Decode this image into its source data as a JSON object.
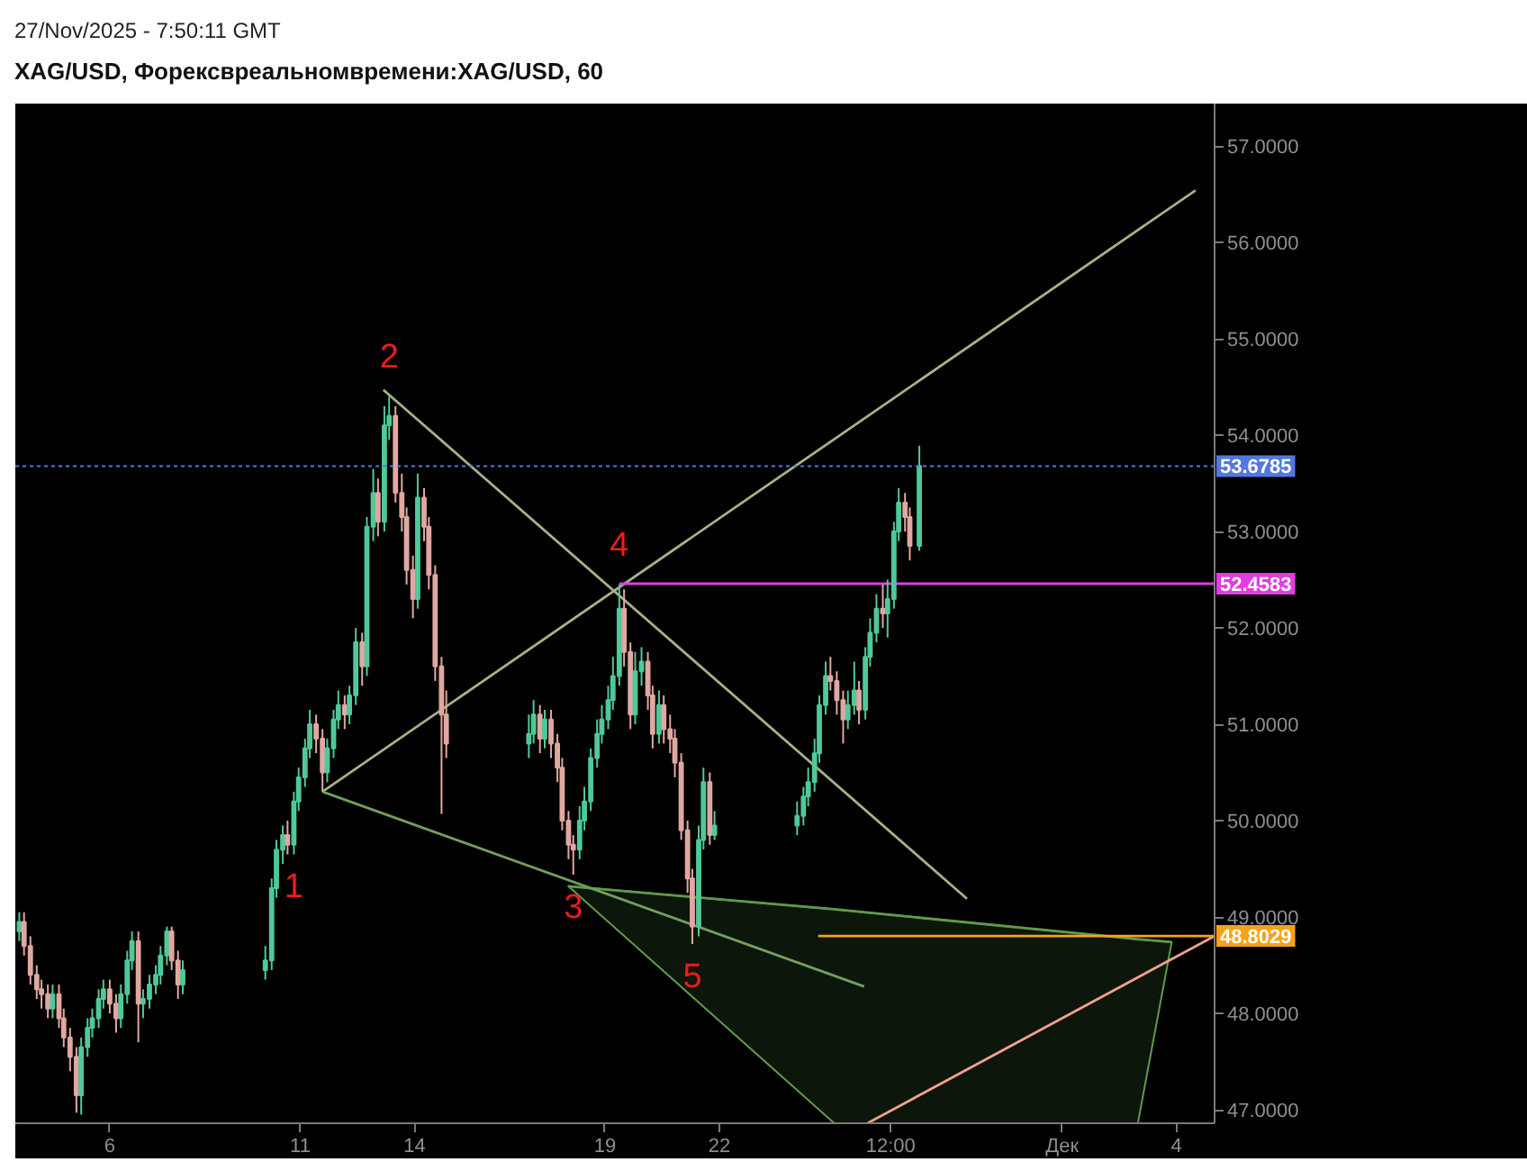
{
  "chart_data": {
    "type": "candlestick",
    "title": "XAG/USD, Форексвреальномвремени:XAG/USD, 60",
    "annotations": [
      "27/Nov/2025 - 7:50:11 GMT",
      {
        "text": "1",
        "x": "2025-11-10T20:00",
        "y": 49.65
      },
      {
        "text": "2",
        "x": "2025-11-13T08:00",
        "y": 54.4
      },
      {
        "text": "3",
        "x": "2025-11-18T04:00",
        "y": 49.44
      },
      {
        "text": "4",
        "x": "2025-11-19T09:00",
        "y": 52.45
      },
      {
        "text": "5",
        "x": "2025-11-21T07:00",
        "y": 48.72
      }
    ],
    "x": [
      "2025-11-03T15:00",
      "2025-11-03T18:00",
      "2025-11-03T22:00",
      "2025-11-04T02:00",
      "2025-11-04T05:00",
      "2025-11-04T09:00",
      "2025-11-04T12:00",
      "2025-11-04T16:00",
      "2025-11-04T19:00",
      "2025-11-04T23:00",
      "2025-11-05T03:00",
      "2025-11-05T06:00",
      "2025-11-05T10:00",
      "2025-11-05T13:00",
      "2025-11-05T17:00",
      "2025-11-05T20:00",
      "2025-11-06T00:00",
      "2025-11-06T04:00",
      "2025-11-06T07:00",
      "2025-11-06T11:00",
      "2025-11-06T14:00",
      "2025-11-06T18:00",
      "2025-11-06T21:00",
      "2025-11-07T01:00",
      "2025-11-07T05:00",
      "2025-11-07T08:00",
      "2025-11-07T12:00",
      "2025-11-07T15:00",
      "2025-11-07T19:00",
      "2025-11-07T22:00",
      "2025-11-10T02:00",
      "2025-11-10T06:00",
      "2025-11-10T09:00",
      "2025-11-10T13:00",
      "2025-11-10T16:00",
      "2025-11-10T20:00",
      "2025-11-10T23:00",
      "2025-11-11T03:00",
      "2025-11-11T06:00",
      "2025-11-11T10:00",
      "2025-11-11T14:00",
      "2025-11-11T17:00",
      "2025-11-11T21:00",
      "2025-11-12T00:00",
      "2025-11-12T04:00",
      "2025-11-12T07:00",
      "2025-11-12T11:00",
      "2025-11-12T15:00",
      "2025-11-12T18:00",
      "2025-11-12T22:00",
      "2025-11-13T01:00",
      "2025-11-13T05:00",
      "2025-11-13T08:00",
      "2025-11-13T12:00",
      "2025-11-13T16:00",
      "2025-11-13T19:00",
      "2025-11-13T23:00",
      "2025-11-14T02:00",
      "2025-11-14T06:00",
      "2025-11-14T09:00",
      "2025-11-14T13:00",
      "2025-11-14T17:00",
      "2025-11-14T20:00",
      "2025-11-17T00:00",
      "2025-11-17T03:00",
      "2025-11-17T07:00",
      "2025-11-17T10:00",
      "2025-11-17T14:00",
      "2025-11-17T18:00",
      "2025-11-17T21:00",
      "2025-11-18T01:00",
      "2025-11-18T04:00",
      "2025-11-18T08:00",
      "2025-11-18T11:00",
      "2025-11-18T15:00",
      "2025-11-18T19:00",
      "2025-11-18T22:00",
      "2025-11-19T02:00",
      "2025-11-19T05:00",
      "2025-11-19T09:00",
      "2025-11-19T12:00",
      "2025-11-19T16:00",
      "2025-11-19T19:00",
      "2025-11-19T23:00",
      "2025-11-20T03:00",
      "2025-11-20T06:00",
      "2025-11-20T10:00",
      "2025-11-20T13:00",
      "2025-11-20T17:00",
      "2025-11-20T20:00",
      "2025-11-21T00:00",
      "2025-11-21T04:00",
      "2025-11-21T07:00",
      "2025-11-21T11:00",
      "2025-11-21T14:00",
      "2025-11-21T18:00",
      "2025-11-21T21:00",
      "2025-11-24T01:00",
      "2025-11-24T05:00",
      "2025-11-24T08:00",
      "2025-11-24T12:00",
      "2025-11-24T15:00",
      "2025-11-24T19:00",
      "2025-11-24T22:00",
      "2025-11-25T02:00",
      "2025-11-25T06:00",
      "2025-11-25T09:00",
      "2025-11-25T13:00",
      "2025-11-25T16:00",
      "2025-11-25T20:00",
      "2025-11-25T23:00",
      "2025-11-26T03:00",
      "2025-11-26T07:00",
      "2025-11-26T10:00",
      "2025-11-26T14:00",
      "2025-11-26T17:00",
      "2025-11-26T21:00",
      "2025-11-27T00:00",
      "2025-11-27T06:00"
    ],
    "ohlc": [
      [
        48.85,
        49.05,
        48.75,
        48.95
      ],
      [
        48.95,
        49.05,
        48.6,
        48.7
      ],
      [
        48.7,
        48.8,
        48.3,
        48.4
      ],
      [
        48.4,
        48.5,
        48.15,
        48.25
      ],
      [
        48.25,
        48.35,
        48.05,
        48.2
      ],
      [
        48.2,
        48.3,
        47.95,
        48.05
      ],
      [
        48.05,
        48.3,
        47.95,
        48.2
      ],
      [
        48.2,
        48.3,
        47.85,
        47.95
      ],
      [
        47.95,
        48.05,
        47.65,
        47.75
      ],
      [
        47.75,
        47.85,
        47.4,
        47.55
      ],
      [
        47.55,
        47.65,
        46.97,
        47.15
      ],
      [
        47.15,
        47.75,
        46.95,
        47.65
      ],
      [
        47.65,
        47.95,
        47.55,
        47.85
      ],
      [
        47.85,
        48.05,
        47.75,
        47.95
      ],
      [
        47.95,
        48.25,
        47.85,
        48.15
      ],
      [
        48.15,
        48.35,
        48.05,
        48.25
      ],
      [
        48.25,
        48.35,
        48.0,
        48.1
      ],
      [
        48.1,
        48.2,
        47.8,
        47.95
      ],
      [
        47.95,
        48.3,
        47.85,
        48.2
      ],
      [
        48.2,
        48.65,
        48.1,
        48.55
      ],
      [
        48.55,
        48.85,
        48.45,
        48.75
      ],
      [
        48.75,
        48.85,
        47.7,
        48.1
      ],
      [
        48.1,
        48.25,
        47.95,
        48.15
      ],
      [
        48.15,
        48.4,
        48.05,
        48.3
      ],
      [
        48.3,
        48.5,
        48.2,
        48.4
      ],
      [
        48.4,
        48.7,
        48.3,
        48.6
      ],
      [
        48.6,
        48.9,
        48.5,
        48.85
      ],
      [
        48.85,
        48.9,
        48.45,
        48.55
      ],
      [
        48.55,
        48.65,
        48.15,
        48.3
      ],
      [
        48.3,
        48.55,
        48.2,
        48.45
      ],
      [
        48.45,
        48.7,
        48.35,
        48.55
      ],
      [
        48.55,
        49.4,
        48.45,
        49.3
      ],
      [
        49.3,
        49.8,
        49.2,
        49.7
      ],
      [
        49.7,
        49.95,
        49.55,
        49.85
      ],
      [
        49.85,
        50.0,
        49.65,
        49.75
      ],
      [
        49.75,
        50.3,
        49.65,
        50.2
      ],
      [
        50.2,
        50.55,
        50.1,
        50.45
      ],
      [
        50.45,
        50.85,
        50.35,
        50.75
      ],
      [
        50.75,
        51.15,
        50.65,
        51.0
      ],
      [
        51.0,
        51.1,
        50.7,
        50.85
      ],
      [
        50.85,
        50.95,
        50.3,
        50.5
      ],
      [
        50.5,
        50.85,
        50.4,
        50.75
      ],
      [
        50.75,
        51.15,
        50.65,
        51.05
      ],
      [
        51.05,
        51.35,
        50.95,
        51.2
      ],
      [
        51.2,
        51.3,
        50.95,
        51.1
      ],
      [
        51.1,
        51.4,
        51.0,
        51.3
      ],
      [
        51.3,
        52.0,
        51.2,
        51.85
      ],
      [
        51.85,
        51.95,
        51.4,
        51.6
      ],
      [
        51.6,
        53.15,
        51.5,
        53.05
      ],
      [
        53.05,
        53.65,
        52.9,
        53.4
      ],
      [
        53.4,
        53.55,
        52.95,
        53.1
      ],
      [
        53.1,
        54.3,
        53.0,
        54.1
      ],
      [
        54.1,
        54.4,
        53.95,
        54.2
      ],
      [
        54.2,
        54.3,
        53.3,
        53.4
      ],
      [
        53.4,
        53.6,
        53.0,
        53.15
      ],
      [
        53.15,
        53.25,
        52.45,
        52.6
      ],
      [
        52.6,
        52.75,
        52.1,
        52.3
      ],
      [
        52.3,
        53.6,
        52.2,
        53.35
      ],
      [
        53.35,
        53.45,
        52.9,
        53.05
      ],
      [
        53.05,
        53.15,
        52.4,
        52.55
      ],
      [
        52.55,
        52.65,
        51.45,
        51.6
      ],
      [
        51.6,
        51.7,
        50.07,
        51.1
      ],
      [
        51.1,
        51.35,
        50.65,
        50.8
      ],
      [
        50.8,
        51.1,
        50.65,
        50.9
      ],
      [
        50.9,
        51.25,
        50.8,
        51.1
      ],
      [
        51.1,
        51.2,
        50.7,
        50.85
      ],
      [
        50.85,
        51.15,
        50.75,
        51.05
      ],
      [
        51.05,
        51.15,
        50.65,
        50.8
      ],
      [
        50.8,
        50.9,
        50.4,
        50.55
      ],
      [
        50.55,
        50.65,
        49.9,
        50.0
      ],
      [
        50.0,
        50.1,
        49.6,
        49.75
      ],
      [
        49.75,
        49.85,
        49.44,
        49.7
      ],
      [
        49.7,
        50.15,
        49.6,
        50.0
      ],
      [
        50.0,
        50.35,
        49.9,
        50.2
      ],
      [
        50.2,
        50.75,
        50.1,
        50.65
      ],
      [
        50.65,
        51.05,
        50.55,
        50.9
      ],
      [
        50.9,
        51.2,
        50.8,
        51.05
      ],
      [
        51.05,
        51.4,
        50.95,
        51.25
      ],
      [
        51.25,
        51.7,
        51.15,
        51.5
      ],
      [
        51.5,
        52.45,
        51.4,
        52.2
      ],
      [
        52.2,
        52.4,
        51.6,
        51.75
      ],
      [
        51.75,
        51.85,
        50.95,
        51.1
      ],
      [
        51.1,
        51.75,
        51.0,
        51.55
      ],
      [
        51.55,
        51.8,
        51.4,
        51.65
      ],
      [
        51.65,
        51.75,
        51.15,
        51.3
      ],
      [
        51.3,
        51.4,
        50.75,
        50.9
      ],
      [
        50.9,
        51.35,
        50.8,
        51.2
      ],
      [
        51.2,
        51.3,
        50.8,
        50.95
      ],
      [
        50.95,
        51.1,
        50.7,
        50.85
      ],
      [
        50.85,
        50.95,
        50.45,
        50.6
      ],
      [
        50.6,
        50.7,
        49.8,
        49.9
      ],
      [
        49.9,
        50.0,
        49.25,
        49.4
      ],
      [
        49.4,
        49.5,
        48.72,
        48.9
      ],
      [
        48.9,
        49.95,
        48.8,
        49.8
      ],
      [
        49.8,
        50.55,
        49.7,
        50.4
      ],
      [
        50.4,
        50.5,
        49.75,
        49.85
      ],
      [
        49.85,
        50.1,
        49.8,
        49.95
      ],
      [
        49.95,
        50.2,
        49.85,
        50.05
      ],
      [
        50.05,
        50.35,
        49.95,
        50.25
      ],
      [
        50.25,
        50.55,
        50.15,
        50.4
      ],
      [
        50.4,
        50.85,
        50.3,
        50.7
      ],
      [
        50.7,
        51.3,
        50.6,
        51.2
      ],
      [
        51.2,
        51.65,
        51.1,
        51.5
      ],
      [
        51.5,
        51.7,
        51.35,
        51.45
      ],
      [
        51.45,
        51.55,
        51.1,
        51.25
      ],
      [
        51.25,
        51.35,
        50.8,
        51.05
      ],
      [
        51.05,
        51.35,
        50.95,
        51.2
      ],
      [
        51.2,
        51.65,
        51.1,
        51.35
      ],
      [
        51.35,
        51.45,
        51.0,
        51.15
      ],
      [
        51.15,
        51.8,
        51.05,
        51.7
      ],
      [
        51.7,
        52.1,
        51.6,
        51.95
      ],
      [
        51.95,
        52.35,
        51.85,
        52.2
      ],
      [
        52.2,
        52.45,
        52.0,
        52.15
      ],
      [
        52.15,
        52.5,
        51.9,
        52.3
      ],
      [
        52.3,
        53.1,
        52.2,
        53.0
      ],
      [
        53.0,
        53.45,
        52.9,
        53.3
      ],
      [
        53.3,
        53.4,
        53.0,
        53.15
      ],
      [
        53.15,
        53.25,
        52.7,
        52.85
      ],
      [
        52.85,
        53.89,
        52.8,
        53.68
      ]
    ],
    "colors": [
      "#4fc99a",
      "#e0a8a0",
      "#e0a8a0",
      "#e0a8a0",
      "#e0a8a0",
      "#e0a8a0",
      "#4fc99a",
      "#e0a8a0",
      "#e0a8a0",
      "#e0a8a0",
      "#e0a8a0",
      "#4fc99a",
      "#4fc99a",
      "#4fc99a",
      "#4fc99a",
      "#4fc99a",
      "#e0a8a0",
      "#e0a8a0",
      "#4fc99a",
      "#4fc99a",
      "#4fc99a",
      "#e0a8a0",
      "#4fc99a",
      "#4fc99a",
      "#4fc99a",
      "#4fc99a",
      "#4fc99a",
      "#e0a8a0",
      "#e0a8a0",
      "#4fc99a",
      "#4fc99a",
      "#4fc99a",
      "#4fc99a",
      "#4fc99a",
      "#e0a8a0",
      "#4fc99a",
      "#4fc99a",
      "#4fc99a",
      "#4fc99a",
      "#e0a8a0",
      "#e0a8a0",
      "#4fc99a",
      "#4fc99a",
      "#4fc99a",
      "#e0a8a0",
      "#4fc99a",
      "#4fc99a",
      "#e0a8a0",
      "#4fc99a",
      "#4fc99a",
      "#e0a8a0",
      "#4fc99a",
      "#4fc99a",
      "#e0a8a0",
      "#e0a8a0",
      "#e0a8a0",
      "#e0a8a0",
      "#4fc99a",
      "#e0a8a0",
      "#e0a8a0",
      "#e0a8a0",
      "#e0a8a0",
      "#e0a8a0",
      "#4fc99a",
      "#4fc99a",
      "#e0a8a0",
      "#4fc99a",
      "#e0a8a0",
      "#e0a8a0",
      "#e0a8a0",
      "#e0a8a0",
      "#e0a8a0",
      "#4fc99a",
      "#4fc99a",
      "#4fc99a",
      "#4fc99a",
      "#4fc99a",
      "#4fc99a",
      "#4fc99a",
      "#4fc99a",
      "#e0a8a0",
      "#e0a8a0",
      "#4fc99a",
      "#4fc99a",
      "#e0a8a0",
      "#e0a8a0",
      "#4fc99a",
      "#e0a8a0",
      "#e0a8a0",
      "#e0a8a0",
      "#e0a8a0",
      "#e0a8a0",
      "#e0a8a0",
      "#4fc99a",
      "#4fc99a",
      "#e0a8a0",
      "#4fc99a",
      "#4fc99a",
      "#4fc99a",
      "#4fc99a",
      "#4fc99a",
      "#4fc99a",
      "#4fc99a",
      "#e0a8a0",
      "#e0a8a0",
      "#e0a8a0",
      "#4fc99a",
      "#4fc99a",
      "#e0a8a0",
      "#4fc99a",
      "#4fc99a",
      "#4fc99a",
      "#e0a8a0",
      "#4fc99a",
      "#4fc99a",
      "#4fc99a",
      "#e0a8a0",
      "#e0a8a0",
      "#4fc99a"
    ],
    "series": [
      {
        "type": "line",
        "x": [
          "2025-11-18T00:50",
          "2025-11-25T00:25",
          "2025-12-02T23:40",
          "2025-12-03T21:00"
        ],
        "values": [
          49.32,
          49.08,
          48.77,
          48.74
        ],
        "lower": [
          49.32,
          46.86,
          46.86,
          48.74
        ],
        "upper": [
          49.32,
          49.08,
          48.77,
          48.74
        ],
        "color": "#5f9a4c"
      },
      {
        "type": "line",
        "x": [
          "2025-11-11T14:00",
          "2025-12-04T12:00"
        ],
        "values": [
          50.3,
          56.54
        ],
        "color": "#a6b286"
      },
      {
        "type": "line",
        "x": [
          "2025-11-13T04:20",
          "2025-11-28T12:00"
        ],
        "values": [
          54.47,
          49.19
        ],
        "color": "#a6b286"
      },
      {
        "type": "line",
        "x": [
          "2025-11-11T14:00",
          "2025-11-25T19:10"
        ],
        "values": [
          50.3,
          48.28
        ],
        "color": "#739f5e"
      },
      {
        "type": "line",
        "x": [
          "2025-11-25T21:20",
          "2025-12-04T23:40"
        ],
        "values": [
          46.86,
          48.8
        ],
        "color": "#f0a08c"
      },
      {
        "type": "line",
        "x": [
          "2025-11-19T09:00",
          "2025-12-05T00:00"
        ],
        "values": [
          52.4583,
          52.4583
        ],
        "color": "#e23ce2",
        "value_labels": [
          null,
          "52.4583"
        ]
      },
      {
        "type": "line",
        "x": [
          "2025-11-24T14:20",
          "2025-12-05T00:00"
        ],
        "values": [
          48.8029,
          48.8029
        ],
        "color": "#f7a21b",
        "value_labels": [
          null,
          "48.8029"
        ]
      }
    ],
    "ref_lines": [
      {
        "axis": "y",
        "value": 53.6785,
        "label": "53.6785",
        "color": "#5477e0",
        "line_style": "dotted"
      }
    ],
    "xlim": [
      "2025-11-03T12:30",
      "2025-12-05T00:00"
    ],
    "xticks": [
      {
        "value": "2025-11-06",
        "label": "6"
      },
      {
        "value": "2025-11-11",
        "label": "11"
      },
      {
        "value": "2025-11-14",
        "label": "14"
      },
      {
        "value": "2025-11-19",
        "label": "19"
      },
      {
        "value": "2025-11-22",
        "label": "22"
      },
      {
        "value": "2025-11-26T12:00",
        "label": "12:00"
      },
      {
        "value": "2025-12-01",
        "label": "Дек"
      },
      {
        "value": "2025-12-04",
        "label": "4"
      }
    ],
    "ylim": [
      46.86,
      57.44
    ],
    "yticks": [
      {
        "value": 47,
        "label": "47.0000"
      },
      {
        "value": 48,
        "label": "48.0000"
      },
      {
        "value": 49,
        "label": "49.0000"
      },
      {
        "value": 50,
        "label": "50.0000"
      },
      {
        "value": 51,
        "label": "51.0000"
      },
      {
        "value": 52,
        "label": "52.0000"
      },
      {
        "value": 53,
        "label": "53.0000"
      },
      {
        "value": 54,
        "label": "54.0000"
      },
      {
        "value": 55,
        "label": "55.0000"
      },
      {
        "value": 56,
        "label": "56.0000"
      },
      {
        "value": 57,
        "label": "57.0000"
      }
    ]
  }
}
